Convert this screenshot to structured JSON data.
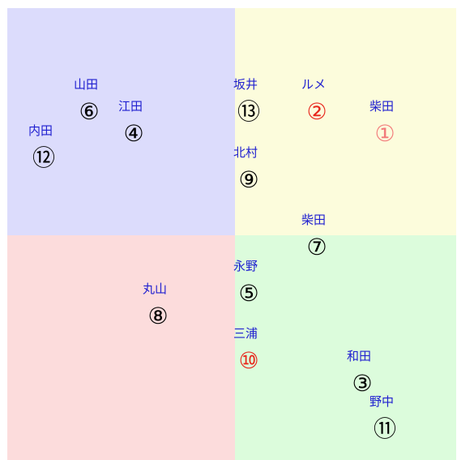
{
  "items": [
    {
      "name": "山田",
      "mark": "⑥",
      "color": "#000000"
    },
    {
      "name": "江田",
      "mark": "④",
      "color": "#000000"
    },
    {
      "name": "内田",
      "mark": "⑫",
      "color": "#000000"
    },
    {
      "name": "坂井",
      "mark": "⑬",
      "color": "#000000"
    },
    {
      "name": "ルメ",
      "mark": "②",
      "color": "#e8261c"
    },
    {
      "name": "柴田",
      "mark": "①",
      "color": "#f27a7a"
    },
    {
      "name": "北村",
      "mark": "⑨",
      "color": "#000000"
    },
    {
      "name": "柴田",
      "mark": "⑦",
      "color": "#000000"
    },
    {
      "name": "永野",
      "mark": "⑤",
      "color": "#000000"
    },
    {
      "name": "丸山",
      "mark": "⑧",
      "color": "#000000"
    },
    {
      "name": "三浦",
      "mark": "⑩",
      "color": "#e8261c"
    },
    {
      "name": "和田",
      "mark": "③",
      "color": "#000000"
    },
    {
      "name": "野中",
      "mark": "⑪",
      "color": "#000000"
    }
  ]
}
